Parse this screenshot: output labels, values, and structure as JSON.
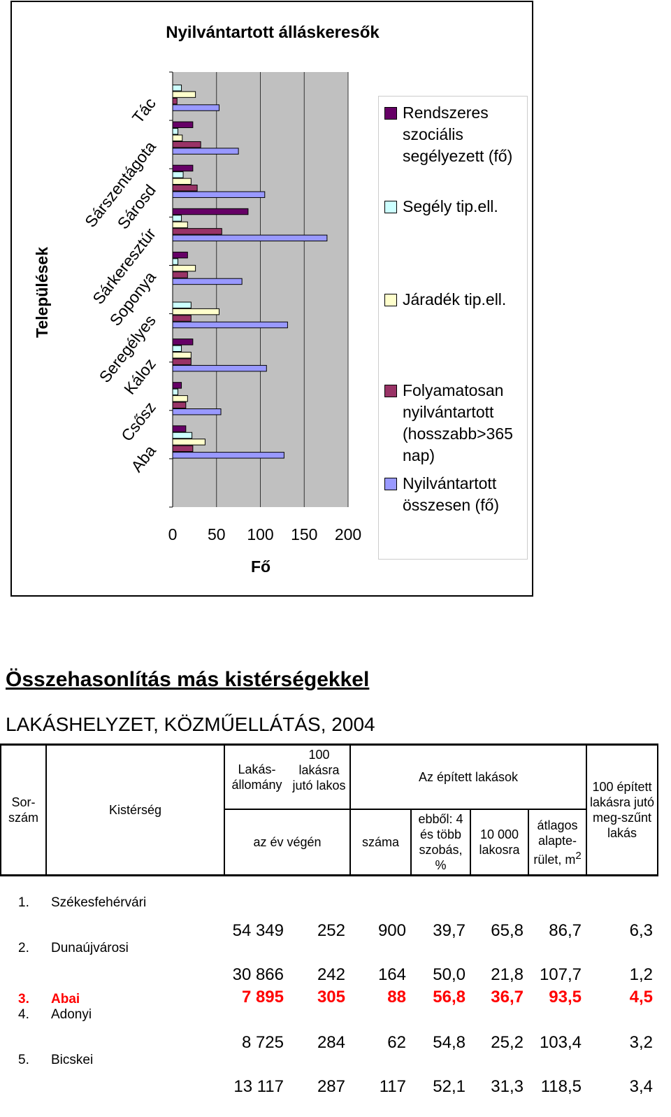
{
  "chart_data": {
    "type": "bar",
    "orientation": "horizontal",
    "title": "Nyilvántartott álláskeresők",
    "y_label": "Települések",
    "x_label": "Fő",
    "categories": [
      "Aba",
      "Csősz",
      "Káloz",
      "Seregélyes",
      "Soponya",
      "Sárkeresztúr",
      "Sárosd",
      "Sárszentágota",
      "Tác"
    ],
    "series": [
      {
        "name": "Rendszeres szociális segélyezett (fő)",
        "color": "#660066",
        "values": [
          15,
          10,
          23,
          0,
          17,
          86,
          23,
          23,
          0
        ]
      },
      {
        "name": "Segély tip.ell.",
        "color": "#ccffff",
        "values": [
          22,
          6,
          10,
          21,
          6,
          10,
          12,
          6,
          10
        ]
      },
      {
        "name": "Járadék tip.ell.",
        "color": "#ffffcc",
        "values": [
          37,
          17,
          21,
          53,
          26,
          17,
          21,
          11,
          26
        ]
      },
      {
        "name": "Folyamatosan nyilvántartott (hosszabb>365 nap)",
        "color": "#993366",
        "values": [
          23,
          15,
          21,
          21,
          17,
          56,
          28,
          32,
          5
        ]
      },
      {
        "name": "Nyilvántartott összesen (fő)",
        "color": "#9999ff",
        "values": [
          127,
          55,
          107,
          131,
          79,
          176,
          105,
          75,
          53
        ]
      }
    ],
    "xlim": [
      0,
      200
    ],
    "xticks": [
      0,
      50,
      100,
      150,
      200
    ],
    "grid": true,
    "plot_background": "#c0c0c0"
  },
  "section_title": "Összehasonlítás más kistérségekkel",
  "table": {
    "title": "LAKÁSHELYZET, KÖZMŰELLÁTÁS, 2004",
    "header": {
      "sorszam": "Sor-szám",
      "kisterseg": "Kistérség",
      "lakasallomany": "Lakás-állomány",
      "lakos": "100 lakásra jutó lakos",
      "ev_vegen": "az év végén",
      "epitett": "Az épített lakások",
      "szama": "száma",
      "szobas": "ebből: 4 és több szobás, %",
      "lakosra": "10 000 lakosra",
      "alapterulet": "átlagos alapte-rület, m",
      "alapterulet_sup": "2",
      "megszunt": "100 épített lakásra jutó meg-szűnt lakás"
    },
    "rows": [
      [
        "1.",
        "Székesfehérvári",
        "54 349",
        "252",
        "900",
        "39,7",
        "65,8",
        "86,7",
        "6,3"
      ],
      [
        "2.",
        "Dunaújvárosi",
        "30 866",
        "242",
        "164",
        "50,0",
        "21,8",
        "107,7",
        "1,2"
      ],
      [
        "3.",
        "Abai",
        "7 895",
        "305",
        "88",
        "56,8",
        "36,7",
        "93,5",
        "4,5"
      ],
      [
        "4.",
        "Adonyi",
        "8 725",
        "284",
        "62",
        "54,8",
        "25,2",
        "103,4",
        "3,2"
      ],
      [
        "5.",
        "Bicskei",
        "13 117",
        "287",
        "117",
        "52,1",
        "31,3",
        "118,5",
        "3,4"
      ]
    ],
    "highlight_row": 2,
    "highlight_color": "#ff0000"
  }
}
